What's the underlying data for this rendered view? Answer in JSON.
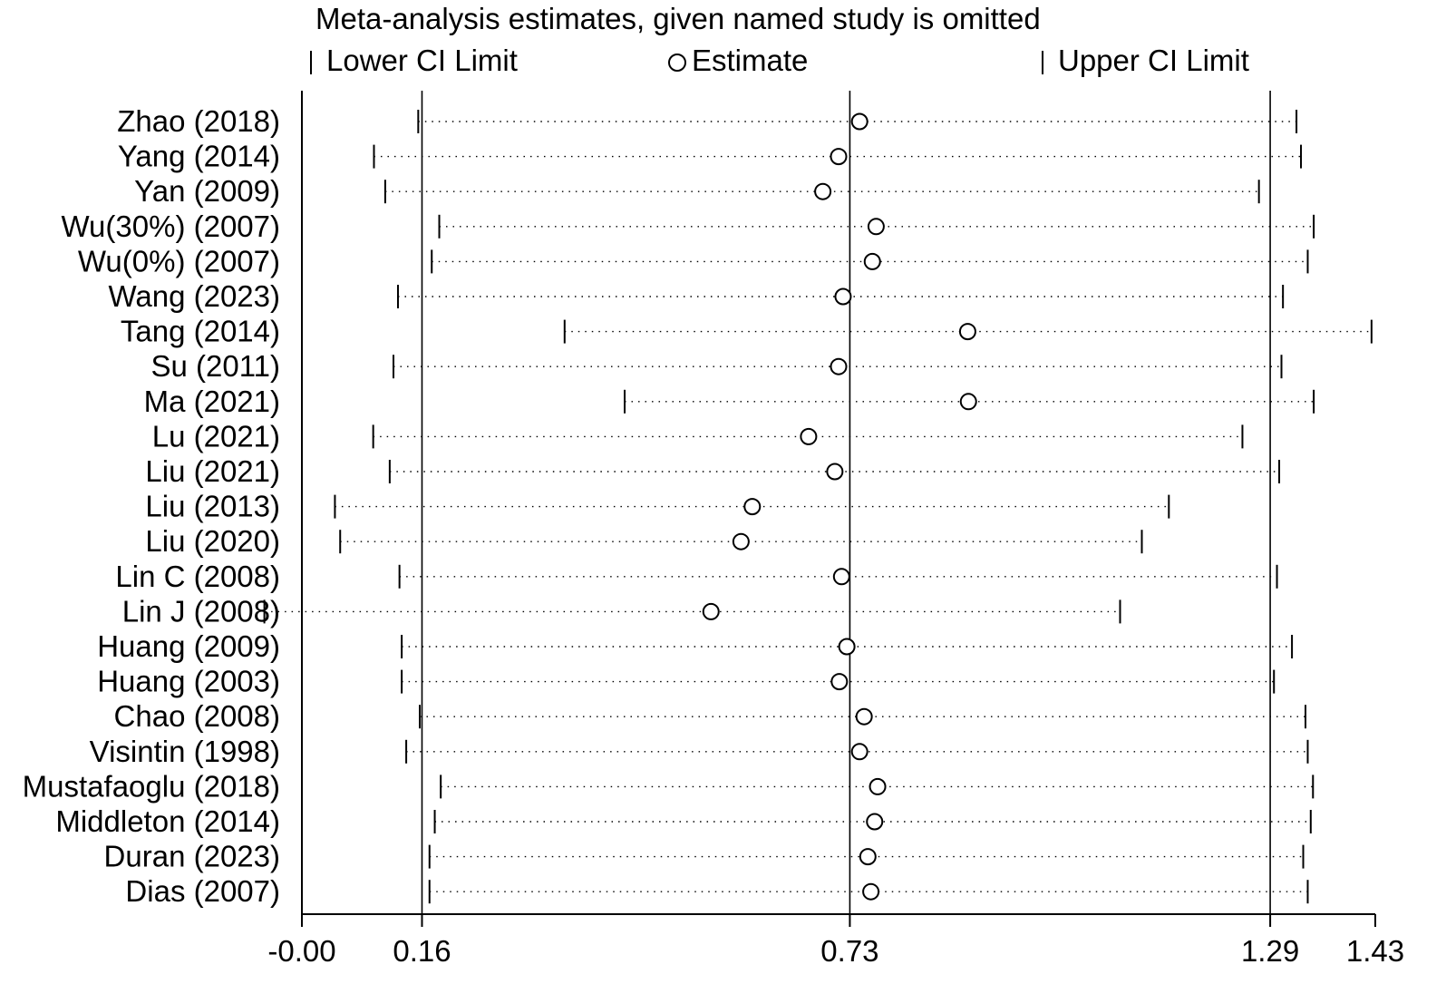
{
  "chart_data": {
    "type": "forest",
    "title": "Meta-analysis estimates, given named study is omitted",
    "legend": {
      "lower": "Lower CI Limit",
      "estimate": "Estimate",
      "upper": "Upper CI Limit",
      "placement": "top"
    },
    "x_ticks": [
      {
        "value": 0.0,
        "label": "-0.00"
      },
      {
        "value": 0.16,
        "label": "0.16"
      },
      {
        "value": 0.73,
        "label": "0.73"
      },
      {
        "value": 1.29,
        "label": "1.29"
      },
      {
        "value": 1.43,
        "label": "1.43"
      }
    ],
    "reference_lines": [
      0.16,
      0.73,
      1.29
    ],
    "xlim": [
      0.0,
      1.43
    ],
    "studies": [
      {
        "name": "Zhao (2018)",
        "lower": 0.155,
        "estimate": 0.743,
        "upper": 1.325
      },
      {
        "name": "Yang (2014)",
        "lower": 0.096,
        "estimate": 0.715,
        "upper": 1.331
      },
      {
        "name": "Yan (2009)",
        "lower": 0.111,
        "estimate": 0.694,
        "upper": 1.275
      },
      {
        "name": "Wu(30%) (2007)",
        "lower": 0.183,
        "estimate": 0.765,
        "upper": 1.348
      },
      {
        "name": "Wu(0%) (2007)",
        "lower": 0.173,
        "estimate": 0.76,
        "upper": 1.34
      },
      {
        "name": "Wang (2023)",
        "lower": 0.128,
        "estimate": 0.721,
        "upper": 1.307
      },
      {
        "name": "Tang (2014)",
        "lower": 0.35,
        "estimate": 0.887,
        "upper": 1.425
      },
      {
        "name": "Su (2011)",
        "lower": 0.122,
        "estimate": 0.715,
        "upper": 1.305
      },
      {
        "name": "Ma (2021)",
        "lower": 0.43,
        "estimate": 0.888,
        "upper": 1.348
      },
      {
        "name": "Lu (2021)",
        "lower": 0.095,
        "estimate": 0.675,
        "upper": 1.253
      },
      {
        "name": "Liu (2021)",
        "lower": 0.117,
        "estimate": 0.71,
        "upper": 1.302
      },
      {
        "name": "Liu (2013)",
        "lower": 0.044,
        "estimate": 0.6,
        "upper": 1.155
      },
      {
        "name": "Liu (2020)",
        "lower": 0.051,
        "estimate": 0.585,
        "upper": 1.119
      },
      {
        "name": "Lin C (2008)",
        "lower": 0.13,
        "estimate": 0.719,
        "upper": 1.299
      },
      {
        "name": "Lin J (2008)",
        "lower": -0.05,
        "estimate": 0.545,
        "upper": 1.09
      },
      {
        "name": "Huang (2009)",
        "lower": 0.133,
        "estimate": 0.726,
        "upper": 1.319
      },
      {
        "name": "Huang (2003)",
        "lower": 0.133,
        "estimate": 0.716,
        "upper": 1.295
      },
      {
        "name": "Chao (2008)",
        "lower": 0.157,
        "estimate": 0.749,
        "upper": 1.337
      },
      {
        "name": "Visintin (1998)",
        "lower": 0.139,
        "estimate": 0.743,
        "upper": 1.34
      },
      {
        "name": "Mustafaoglu (2018)",
        "lower": 0.185,
        "estimate": 0.767,
        "upper": 1.347
      },
      {
        "name": "Middleton (2014)",
        "lower": 0.177,
        "estimate": 0.763,
        "upper": 1.344
      },
      {
        "name": "Duran (2023)",
        "lower": 0.17,
        "estimate": 0.754,
        "upper": 1.334
      },
      {
        "name": "Dias (2007)",
        "lower": 0.17,
        "estimate": 0.758,
        "upper": 1.34
      }
    ]
  }
}
